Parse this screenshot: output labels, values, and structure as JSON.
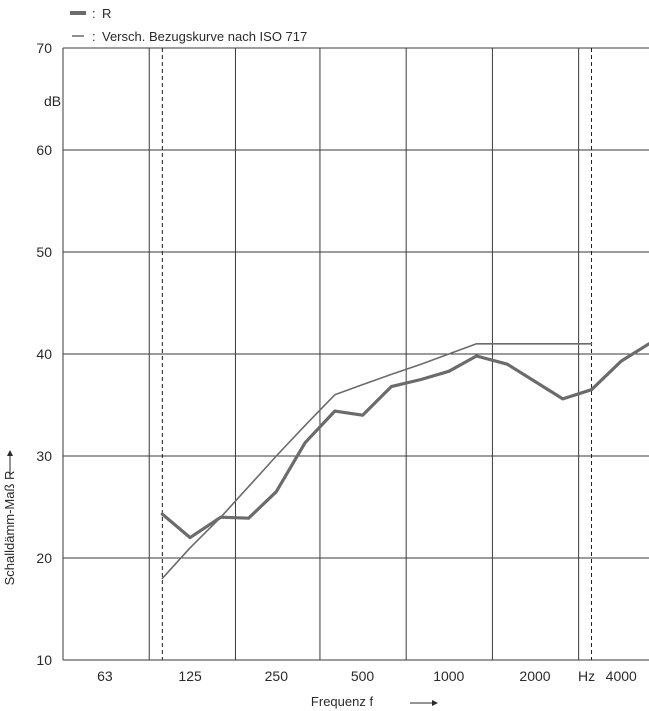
{
  "chart_data": {
    "type": "line",
    "x_scale": "log",
    "x_unit_label": "Hz",
    "xlabel": "Frequenz f",
    "ylabel": "Schalldämm-Maß R",
    "y_unit": "dB",
    "ylim": [
      10,
      70
    ],
    "xlim": [
      45,
      5000
    ],
    "grid": true,
    "x_ticks": [
      {
        "value": 63,
        "label": "63"
      },
      {
        "value": 125,
        "label": "125"
      },
      {
        "value": 250,
        "label": "250"
      },
      {
        "value": 500,
        "label": "500"
      },
      {
        "value": 1000,
        "label": "1000"
      },
      {
        "value": 2000,
        "label": "2000"
      },
      {
        "value": 4000,
        "label": "4000"
      }
    ],
    "y_ticks": [
      {
        "value": 10,
        "label": "10"
      },
      {
        "value": 20,
        "label": "20"
      },
      {
        "value": 30,
        "label": "30"
      },
      {
        "value": 40,
        "label": "40"
      },
      {
        "value": 50,
        "label": "50"
      },
      {
        "value": 60,
        "label": "60"
      },
      {
        "value": 70,
        "label": "70"
      }
    ],
    "reference_lines_x": [
      100,
      3150
    ],
    "series": [
      {
        "name": "R",
        "style": "thick",
        "color": "#6b6b6b",
        "x": [
          100,
          125,
          160,
          200,
          250,
          315,
          400,
          500,
          630,
          800,
          1000,
          1250,
          1600,
          2000,
          2500,
          3150,
          4000,
          5000
        ],
        "y": [
          24.3,
          22.0,
          24.0,
          23.9,
          26.5,
          31.3,
          34.4,
          34.0,
          36.8,
          37.5,
          38.3,
          39.8,
          39.0,
          37.3,
          35.6,
          36.5,
          39.3,
          41.0
        ]
      },
      {
        "name": "Versch. Bezugskurve nach ISO 717",
        "style": "thin",
        "color": "#6b6b6b",
        "x": [
          100,
          125,
          160,
          200,
          250,
          315,
          400,
          500,
          630,
          800,
          1000,
          1250,
          1600,
          2000,
          2500,
          3150
        ],
        "y": [
          18.0,
          21.0,
          24.0,
          27.0,
          30.0,
          33.0,
          36.0,
          37.0,
          38.0,
          39.0,
          40.0,
          41.0,
          41.0,
          41.0,
          41.0,
          41.0
        ]
      }
    ],
    "legend": {
      "placement": "top-left",
      "entries": [
        {
          "prefix": ": ",
          "label": "R"
        },
        {
          "prefix": ": ",
          "label": "Versch. Bezugskurve nach ISO 717"
        }
      ]
    }
  }
}
